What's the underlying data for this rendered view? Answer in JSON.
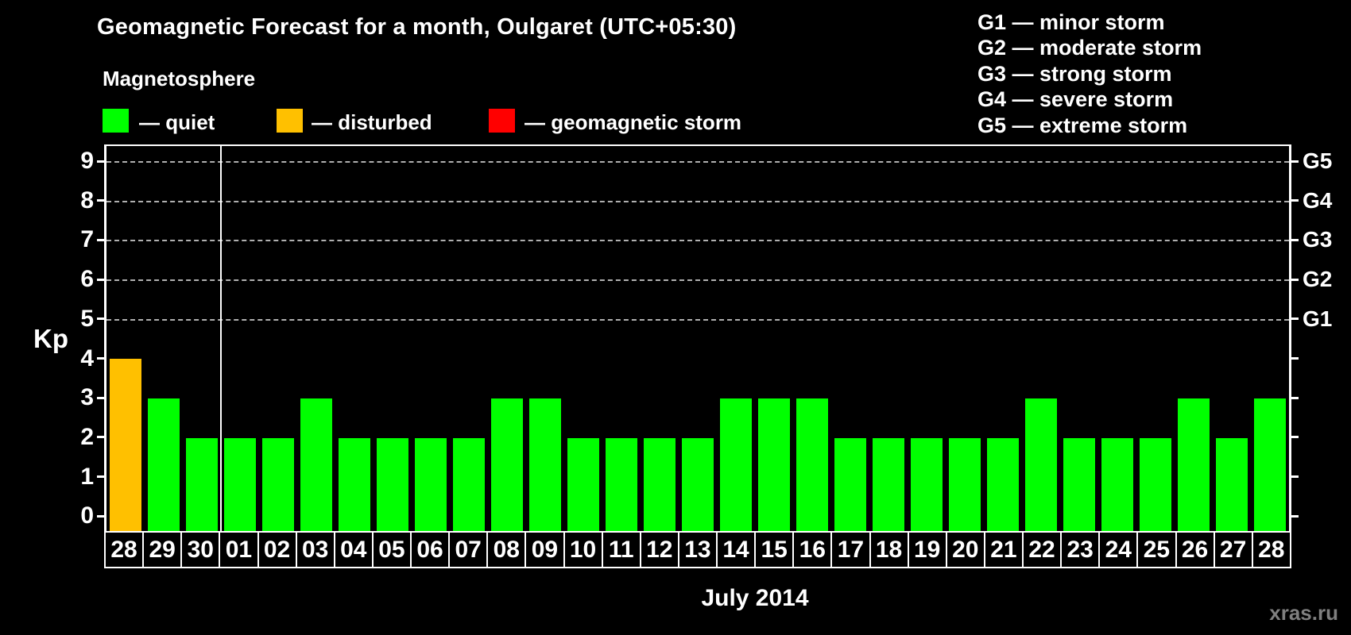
{
  "title": "Geomagnetic Forecast for a month, Oulgaret (UTC+05:30)",
  "subtitle": "Magnetosphere",
  "legend": {
    "items": [
      {
        "name": "quiet",
        "label": "— quiet",
        "color": "#00ff00"
      },
      {
        "name": "disturbed",
        "label": "— disturbed",
        "color": "#ffc000"
      },
      {
        "name": "storm",
        "label": "— geomagnetic storm",
        "color": "#ff0000"
      }
    ]
  },
  "storm_scale": {
    "lines": [
      "G1 — minor storm",
      "G2 — moderate storm",
      "G3 — strong storm",
      "G4 — severe storm",
      "G5 — extreme storm"
    ]
  },
  "watermark": "xras.ru",
  "chart_data": {
    "type": "bar",
    "title": "Geomagnetic Forecast for a month, Oulgaret (UTC+05:30)",
    "xlabel": "July 2014",
    "ylabel": "Kp",
    "ylim": [
      0,
      9
    ],
    "y_ticks": [
      0,
      1,
      2,
      3,
      4,
      5,
      6,
      7,
      8,
      9
    ],
    "grid_levels": [
      5,
      6,
      7,
      8,
      9
    ],
    "right_axis_labels": [
      "G1",
      "G2",
      "G3",
      "G4",
      "G5"
    ],
    "right_axis_levels": [
      5,
      6,
      7,
      8,
      9
    ],
    "categories": [
      "28",
      "29",
      "30",
      "01",
      "02",
      "03",
      "04",
      "05",
      "06",
      "07",
      "08",
      "09",
      "10",
      "11",
      "12",
      "13",
      "14",
      "15",
      "16",
      "17",
      "18",
      "19",
      "20",
      "21",
      "22",
      "23",
      "24",
      "25",
      "26",
      "27",
      "28"
    ],
    "values": [
      4,
      3,
      2,
      2,
      2,
      3,
      2,
      2,
      2,
      2,
      3,
      3,
      2,
      2,
      2,
      2,
      3,
      3,
      3,
      2,
      2,
      2,
      2,
      2,
      3,
      2,
      2,
      2,
      3,
      2,
      3
    ],
    "statuses": [
      "disturbed",
      "quiet",
      "quiet",
      "quiet",
      "quiet",
      "quiet",
      "quiet",
      "quiet",
      "quiet",
      "quiet",
      "quiet",
      "quiet",
      "quiet",
      "quiet",
      "quiet",
      "quiet",
      "quiet",
      "quiet",
      "quiet",
      "quiet",
      "quiet",
      "quiet",
      "quiet",
      "quiet",
      "quiet",
      "quiet",
      "quiet",
      "quiet",
      "quiet",
      "quiet",
      "quiet"
    ],
    "status_colors": {
      "quiet": "#00ff00",
      "disturbed": "#ffc000",
      "storm": "#ff0000"
    },
    "separator_after_index": 2
  }
}
